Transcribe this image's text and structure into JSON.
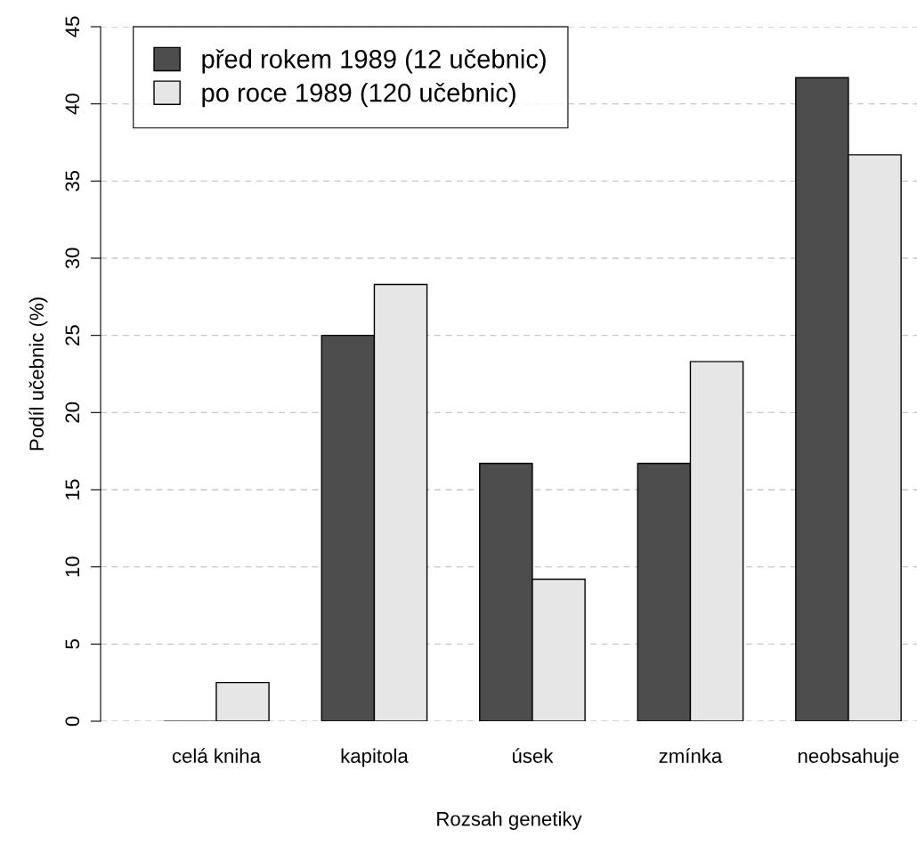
{
  "chart_data": {
    "type": "bar",
    "xlabel": "Rozsah genetiky",
    "ylabel": "Podíl učebnic (%)",
    "categories": [
      "celá kniha",
      "kapitola",
      "úsek",
      "zmínka",
      "neobsahuje"
    ],
    "series": [
      {
        "name": "před rokem 1989 (12 učebnic)",
        "color": "#4d4d4d",
        "values": [
          0,
          25,
          16.7,
          16.7,
          41.7
        ]
      },
      {
        "name": "po roce 1989 (120 učebnic)",
        "color": "#e6e6e6",
        "values": [
          2.5,
          28.3,
          9.2,
          23.3,
          36.7
        ]
      }
    ],
    "ylim": [
      0,
      45
    ],
    "yticks": [
      0,
      5,
      10,
      15,
      20,
      25,
      30,
      35,
      40,
      45
    ],
    "grid": "y",
    "legend": "top left"
  }
}
